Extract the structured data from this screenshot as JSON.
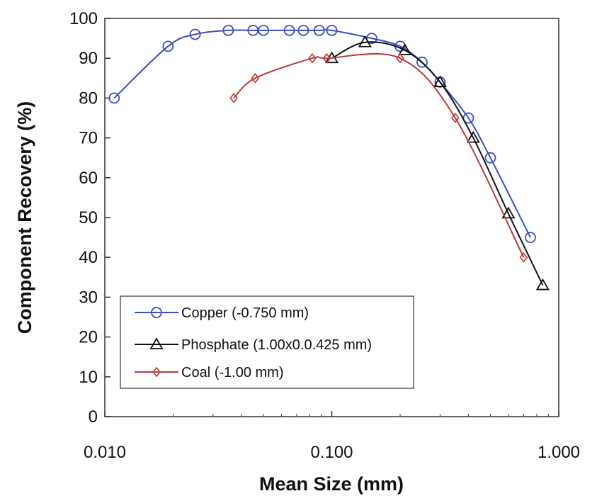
{
  "chart_data": {
    "type": "line",
    "title": "",
    "xlabel": "Mean Size (mm)",
    "ylabel": "Component Recovery (%)",
    "x_scale": "log",
    "xlim": [
      0.01,
      1.0
    ],
    "ylim": [
      0,
      100
    ],
    "x_ticks": [
      {
        "value": 0.01,
        "label": "0.010"
      },
      {
        "value": 0.1,
        "label": "0.100"
      },
      {
        "value": 1.0,
        "label": "1.000"
      }
    ],
    "y_ticks": [
      {
        "value": 0,
        "label": "0"
      },
      {
        "value": 10,
        "label": "10"
      },
      {
        "value": 20,
        "label": "20"
      },
      {
        "value": 30,
        "label": "30"
      },
      {
        "value": 40,
        "label": "40"
      },
      {
        "value": 50,
        "label": "50"
      },
      {
        "value": 60,
        "label": "60"
      },
      {
        "value": 70,
        "label": "70"
      },
      {
        "value": 80,
        "label": "80"
      },
      {
        "value": 90,
        "label": "90"
      },
      {
        "value": 100,
        "label": "100"
      }
    ],
    "grid": false,
    "legend_position": "bottom-left",
    "series": [
      {
        "name": "Copper (-0.750 mm)",
        "color": "#3d4ec0",
        "marker": "circle",
        "x": [
          0.011,
          0.019,
          0.025,
          0.035,
          0.045,
          0.05,
          0.065,
          0.075,
          0.088,
          0.1,
          0.15,
          0.2,
          0.25,
          0.3,
          0.4,
          0.5,
          0.75
        ],
        "y": [
          80,
          93,
          96,
          97,
          97,
          97,
          97,
          97,
          97,
          97,
          95,
          93,
          89,
          84,
          75,
          65,
          45
        ]
      },
      {
        "name": "Phosphate (1.00x0.0.425 mm)",
        "color": "#111111",
        "marker": "triangle",
        "x": [
          0.1,
          0.14,
          0.21,
          0.3,
          0.42,
          0.6,
          0.85
        ],
        "y": [
          90,
          94,
          92,
          84,
          70,
          51,
          33
        ]
      },
      {
        "name": "Coal (-1.00 mm)",
        "color": "#b83a3a",
        "marker": "diamond",
        "x": [
          0.037,
          0.046,
          0.082,
          0.095,
          0.2,
          0.35,
          0.7
        ],
        "y": [
          80,
          85,
          90,
          90,
          90,
          75,
          40
        ]
      }
    ]
  }
}
